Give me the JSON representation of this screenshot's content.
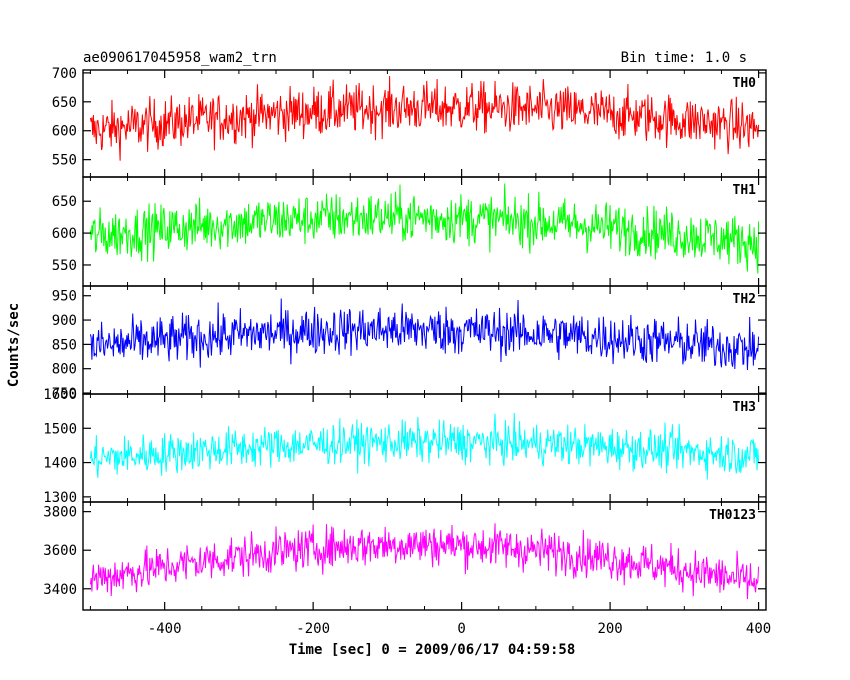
{
  "header": {
    "title": "ae090617045958_wam2_trn",
    "bin_time": "Bin time: 1.0 s"
  },
  "chart_data": {
    "type": "line",
    "xlabel": "Time [sec] 0 = 2009/06/17 04:59:58",
    "ylabel": "Counts/sec",
    "xlim": [
      -510,
      410
    ],
    "x_range": [
      -500,
      400
    ],
    "x_step": 1,
    "x_ticks": [
      -400,
      -200,
      0,
      200,
      400
    ],
    "grid": false,
    "panels": [
      {
        "name": "TH0",
        "color": "#ff0000",
        "ylim": [
          520,
          705
        ],
        "yticks": [
          550,
          600,
          650,
          700
        ],
        "profile": {
          "left": 600,
          "peak": 640,
          "peak_x": -20,
          "right": 605,
          "noise": 22
        }
      },
      {
        "name": "TH1",
        "color": "#00ff00",
        "ylim": [
          517,
          688
        ],
        "yticks": [
          550,
          600,
          650
        ],
        "profile": {
          "left": 595,
          "peak": 625,
          "peak_x": -100,
          "right": 585,
          "noise": 20
        }
      },
      {
        "name": "TH2",
        "color": "#0000ff",
        "ylim": [
          748,
          970
        ],
        "yticks": [
          750,
          800,
          850,
          900,
          950
        ],
        "profile": {
          "left": 845,
          "peak": 880,
          "peak_x": -100,
          "right": 840,
          "noise": 25
        }
      },
      {
        "name": "TH3",
        "color": "#00ffff",
        "ylim": [
          1285,
          1600
        ],
        "yticks": [
          1300,
          1400,
          1500,
          1600
        ],
        "profile": {
          "left": 1410,
          "peak": 1460,
          "peak_x": -50,
          "right": 1420,
          "noise": 30
        }
      },
      {
        "name": "TH0123",
        "color": "#ff00ff",
        "ylim": [
          3290,
          3850
        ],
        "yticks": [
          3400,
          3600,
          3800
        ],
        "profile": {
          "left": 3450,
          "peak": 3630,
          "peak_x": -60,
          "right": 3430,
          "noise": 55
        }
      }
    ]
  }
}
